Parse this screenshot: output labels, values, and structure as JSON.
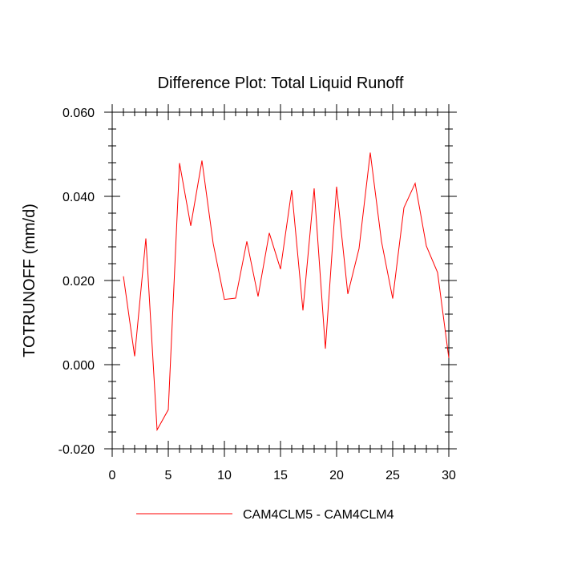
{
  "chart_data": {
    "type": "line",
    "title": "Difference Plot: Total Liquid Runoff",
    "ylabel": "TOTRUNOFF  (mm/d)",
    "xlabel": "",
    "xlim": [
      0,
      30
    ],
    "ylim": [
      -0.02,
      0.06
    ],
    "x_ticks": [
      0,
      5,
      10,
      15,
      20,
      25,
      30
    ],
    "x_tick_labels": [
      "0",
      "5",
      "10",
      "15",
      "20",
      "25",
      "30"
    ],
    "y_ticks": [
      -0.02,
      0.0,
      0.02,
      0.04,
      0.06
    ],
    "y_tick_labels": [
      "-0.020",
      "0.000",
      "0.020",
      "0.040",
      "0.060"
    ],
    "grid": false,
    "legend_position": "bottom-center",
    "series": [
      {
        "name": "CAM4CLM5 - CAM4CLM4",
        "color": "#ff0000",
        "x": [
          1,
          2,
          3,
          4,
          5,
          6,
          7,
          8,
          9,
          10,
          11,
          12,
          13,
          14,
          15,
          16,
          17,
          18,
          19,
          20,
          21,
          22,
          23,
          24,
          25,
          26,
          27,
          28,
          29,
          30
        ],
        "values": [
          0.021,
          0.002,
          0.03,
          -0.0155,
          -0.0107,
          0.0479,
          0.033,
          0.0485,
          0.0288,
          0.0155,
          0.0158,
          0.0293,
          0.0162,
          0.0313,
          0.0227,
          0.0415,
          0.0129,
          0.0419,
          0.0038,
          0.0423,
          0.0168,
          0.0276,
          0.0504,
          0.0293,
          0.0157,
          0.0373,
          0.0431,
          0.0282,
          0.0219,
          0.0016
        ]
      }
    ]
  }
}
